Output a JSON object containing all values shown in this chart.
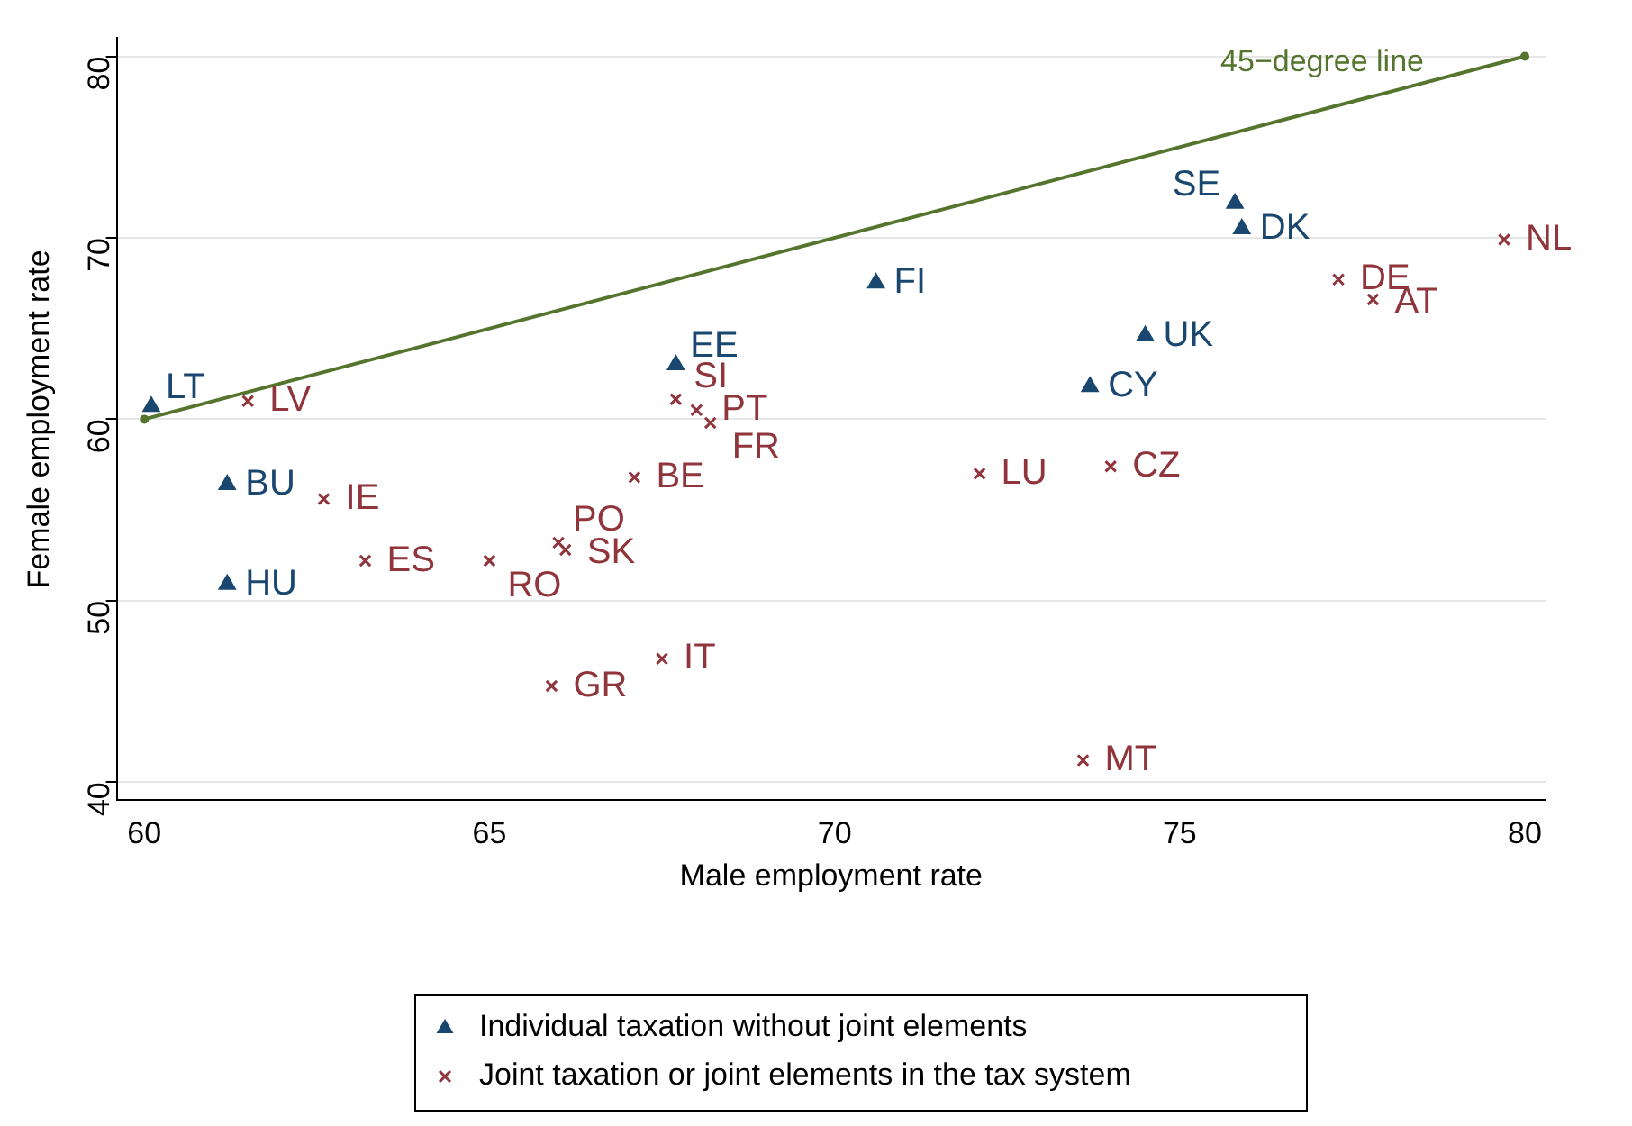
{
  "chart_data": {
    "type": "scatter",
    "xlabel": "Male employment rate",
    "ylabel": "Female employment rate",
    "xlim": [
      59.6,
      80.3
    ],
    "ylim": [
      39,
      81
    ],
    "xticks": [
      60,
      65,
      70,
      75,
      80
    ],
    "yticks": [
      40,
      50,
      60,
      70,
      80
    ],
    "grid": "y",
    "legend": "bottom",
    "series": [
      {
        "name": "Individual taxation without joint elements",
        "color": "#1a476f",
        "marker": "triangle",
        "x": [
          60.1,
          61.2,
          61.2,
          67.7,
          70.6,
          75.8,
          75.9,
          74.5,
          73.7
        ],
        "values": [
          60.7,
          56.4,
          50.9,
          63.0,
          67.5,
          71.9,
          70.5,
          64.6,
          61.8
        ]
      },
      {
        "name": "Joint taxation or joint elements in the tax system",
        "color": "#90353b",
        "marker": "cross",
        "x": [
          61.5,
          62.6,
          63.2,
          65.0,
          66.0,
          66.1,
          65.9,
          67.1,
          67.7,
          68.0,
          68.2,
          67.5,
          72.1,
          73.6,
          74.0,
          77.3,
          77.8,
          79.7
        ],
        "values": [
          61.0,
          55.6,
          52.2,
          52.2,
          53.2,
          52.8,
          45.3,
          56.8,
          61.1,
          60.5,
          59.8,
          46.8,
          57.0,
          41.2,
          57.4,
          67.7,
          66.6,
          69.9
        ]
      },
      {
        "name": "45−degree line",
        "type": "line",
        "color": "#55752f",
        "marker": "circle",
        "x": [
          60,
          80
        ],
        "values": [
          60,
          80
        ]
      }
    ],
    "annotations": [
      {
        "text": "LT",
        "x": 60.1,
        "y": 60.7
      },
      {
        "text": "BU",
        "x": 61.2,
        "y": 56.4
      },
      {
        "text": "HU",
        "x": 61.2,
        "y": 50.9
      },
      {
        "text": "EE",
        "x": 67.7,
        "y": 63.0
      },
      {
        "text": "FI",
        "x": 70.6,
        "y": 67.5
      },
      {
        "text": "SE",
        "x": 75.8,
        "y": 71.9
      },
      {
        "text": "DK",
        "x": 75.9,
        "y": 70.5
      },
      {
        "text": "UK",
        "x": 74.5,
        "y": 64.6
      },
      {
        "text": "CY",
        "x": 73.7,
        "y": 61.8
      },
      {
        "text": "LV",
        "x": 61.5,
        "y": 61.0
      },
      {
        "text": "IE",
        "x": 62.6,
        "y": 55.6
      },
      {
        "text": "ES",
        "x": 63.2,
        "y": 52.2
      },
      {
        "text": "RO",
        "x": 65.0,
        "y": 52.2
      },
      {
        "text": "PO",
        "x": 66.0,
        "y": 53.2
      },
      {
        "text": "SK",
        "x": 66.1,
        "y": 52.8
      },
      {
        "text": "GR",
        "x": 65.9,
        "y": 45.3
      },
      {
        "text": "BE",
        "x": 67.1,
        "y": 56.8
      },
      {
        "text": "SI",
        "x": 67.7,
        "y": 61.1
      },
      {
        "text": "PT",
        "x": 68.0,
        "y": 60.5
      },
      {
        "text": "FR",
        "x": 68.2,
        "y": 59.8
      },
      {
        "text": "IT",
        "x": 67.5,
        "y": 46.8
      },
      {
        "text": "LU",
        "x": 72.1,
        "y": 57.0
      },
      {
        "text": "MT",
        "x": 73.6,
        "y": 41.2
      },
      {
        "text": "CZ",
        "x": 74.0,
        "y": 57.4
      },
      {
        "text": "DE",
        "x": 77.3,
        "y": 67.7
      },
      {
        "text": "AT",
        "x": 77.8,
        "y": 66.6
      },
      {
        "text": "NL",
        "x": 79.7,
        "y": 69.9
      }
    ]
  }
}
